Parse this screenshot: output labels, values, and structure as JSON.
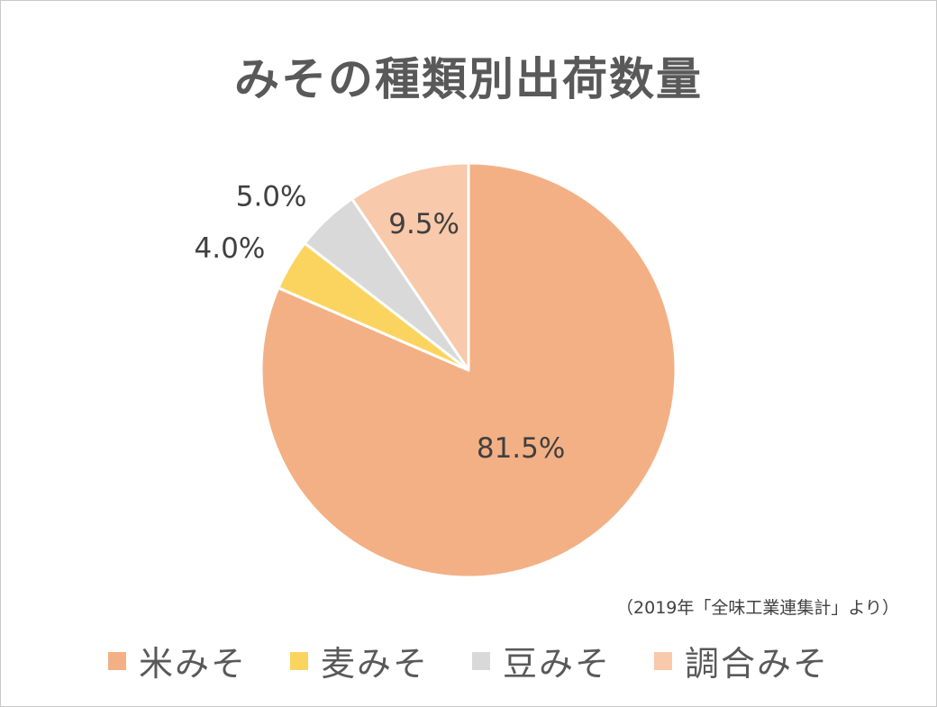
{
  "chart_data": {
    "type": "pie",
    "title": "みその種類別出荷数量",
    "categories": [
      "米みそ",
      "麦みそ",
      "豆みそ",
      "調合みそ"
    ],
    "values": [
      81.5,
      4.0,
      5.0,
      9.5
    ],
    "labels": [
      "81.5%",
      "4.0%",
      "5.0%",
      "9.5%"
    ],
    "colors": [
      "#f3b085",
      "#fbd460",
      "#d9d9d9",
      "#f8c9aa"
    ],
    "start": "12 o'clock, clockwise",
    "legend_position": "bottom"
  },
  "source_note": "（2019年「全味工業連集計」より）"
}
